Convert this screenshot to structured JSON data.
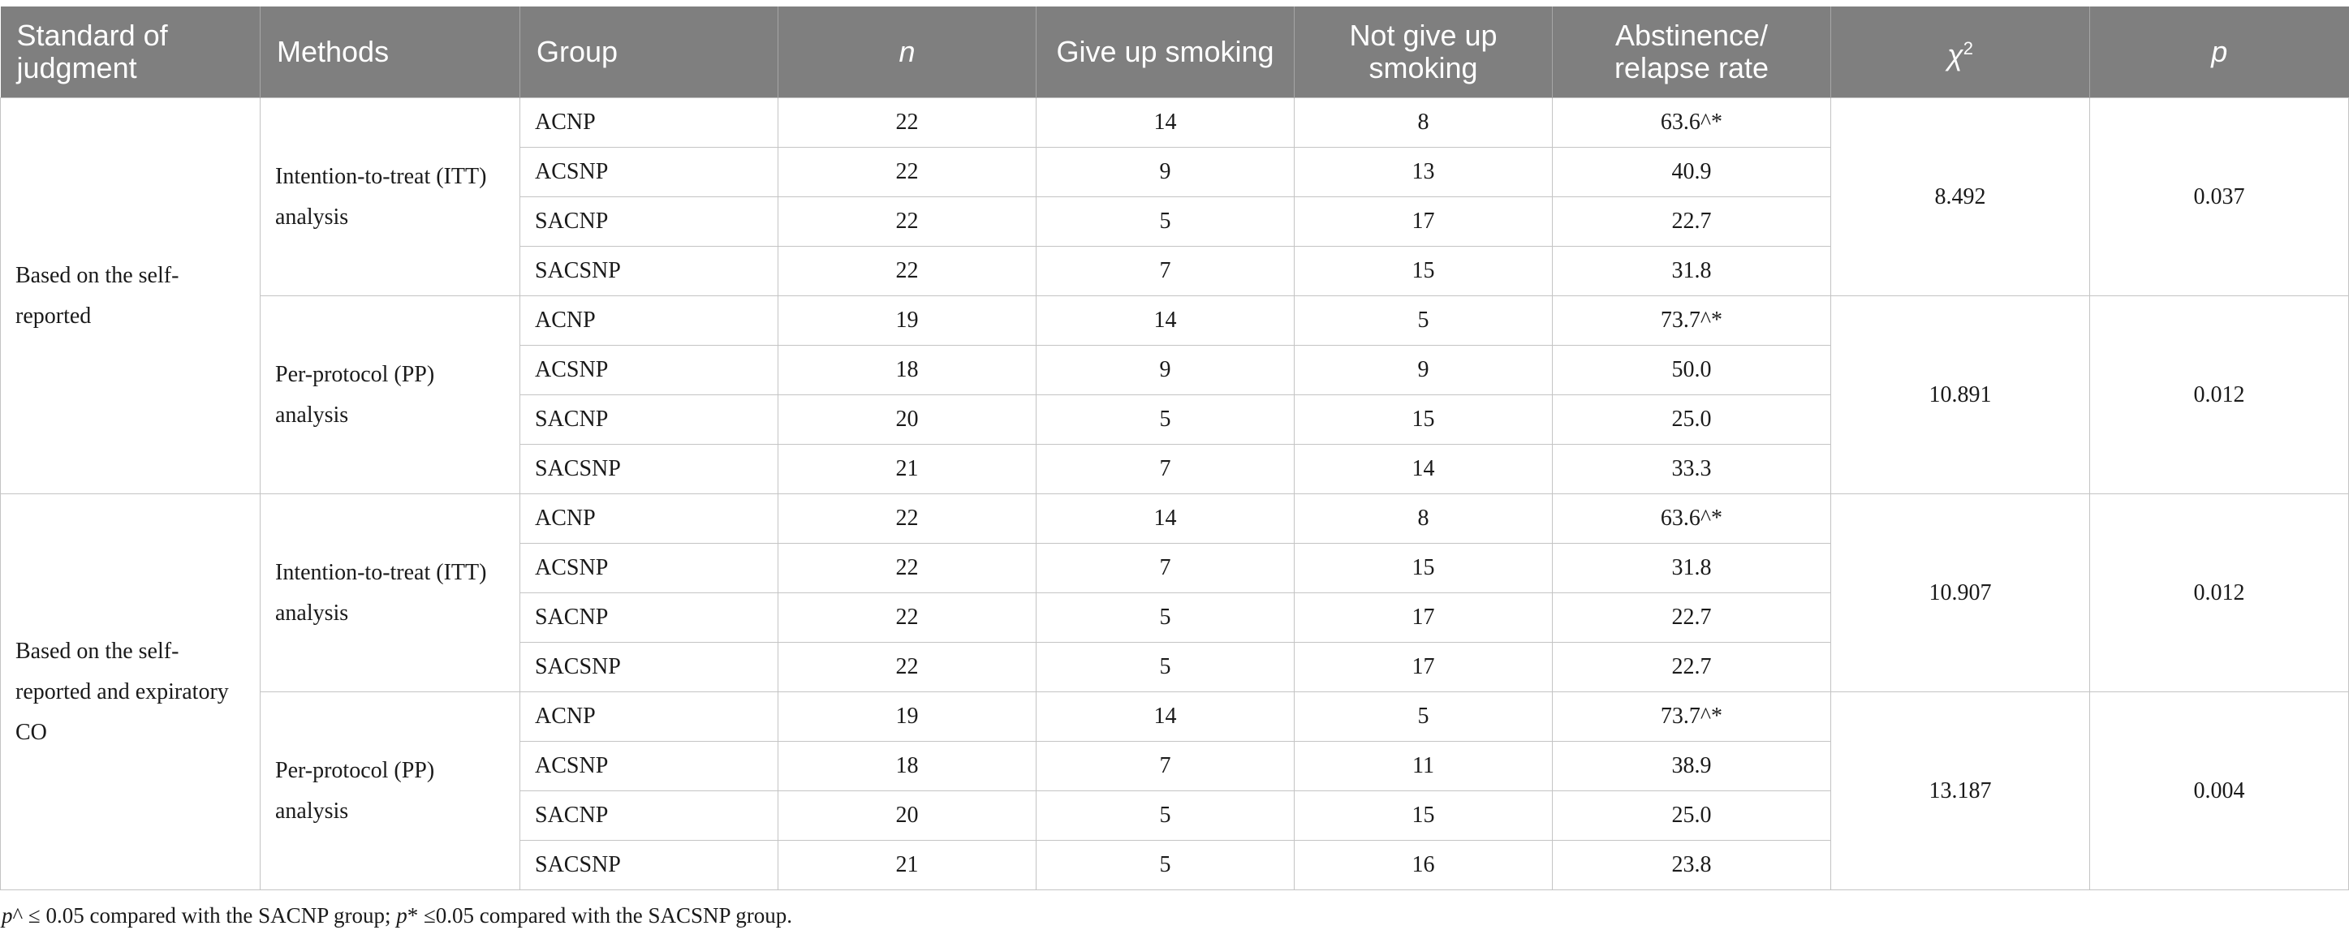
{
  "table": {
    "headers": {
      "standard": "Standard of judgment",
      "methods": "Methods",
      "group": "Group",
      "n": "n",
      "give_up": "Give up smoking",
      "not_give_up": "Not give up smoking",
      "rate": "Abstinence/ relapse rate",
      "chi": "χ",
      "chi_sup": "2",
      "p": "p"
    },
    "sections": [
      {
        "standard": "Based on the self-reported",
        "methods": [
          {
            "name": "Intention-to-treat (ITT) analysis",
            "chi2": "8.492",
            "p": "0.037",
            "rows": [
              {
                "group": "ACNP",
                "n": "22",
                "give_up": "14",
                "not_give_up": "8",
                "rate": "63.6^*"
              },
              {
                "group": "ACSNP",
                "n": "22",
                "give_up": "9",
                "not_give_up": "13",
                "rate": "40.9"
              },
              {
                "group": "SACNP",
                "n": "22",
                "give_up": "5",
                "not_give_up": "17",
                "rate": "22.7"
              },
              {
                "group": "SACSNP",
                "n": "22",
                "give_up": "7",
                "not_give_up": "15",
                "rate": "31.8"
              }
            ]
          },
          {
            "name": "Per-protocol (PP) analysis",
            "chi2": "10.891",
            "p": "0.012",
            "rows": [
              {
                "group": "ACNP",
                "n": "19",
                "give_up": "14",
                "not_give_up": "5",
                "rate": "73.7^*"
              },
              {
                "group": "ACSNP",
                "n": "18",
                "give_up": "9",
                "not_give_up": "9",
                "rate": "50.0"
              },
              {
                "group": "SACNP",
                "n": "20",
                "give_up": "5",
                "not_give_up": "15",
                "rate": "25.0"
              },
              {
                "group": "SACSNP",
                "n": "21",
                "give_up": "7",
                "not_give_up": "14",
                "rate": "33.3"
              }
            ]
          }
        ]
      },
      {
        "standard": "Based on the self-reported and expiratory CO",
        "methods": [
          {
            "name": "Intention-to-treat (ITT) analysis",
            "chi2": "10.907",
            "p": "0.012",
            "rows": [
              {
                "group": "ACNP",
                "n": "22",
                "give_up": "14",
                "not_give_up": "8",
                "rate": "63.6^*"
              },
              {
                "group": "ACSNP",
                "n": "22",
                "give_up": "7",
                "not_give_up": "15",
                "rate": "31.8"
              },
              {
                "group": "SACNP",
                "n": "22",
                "give_up": "5",
                "not_give_up": "17",
                "rate": "22.7"
              },
              {
                "group": "SACSNP",
                "n": "22",
                "give_up": "5",
                "not_give_up": "17",
                "rate": "22.7"
              }
            ]
          },
          {
            "name": "Per-protocol (PP) analysis",
            "chi2": "13.187",
            "p": "0.004",
            "rows": [
              {
                "group": "ACNP",
                "n": "19",
                "give_up": "14",
                "not_give_up": "5",
                "rate": "73.7^*"
              },
              {
                "group": "ACSNP",
                "n": "18",
                "give_up": "7",
                "not_give_up": "11",
                "rate": "38.9"
              },
              {
                "group": "SACNP",
                "n": "20",
                "give_up": "5",
                "not_give_up": "15",
                "rate": "25.0"
              },
              {
                "group": "SACSNP",
                "n": "21",
                "give_up": "5",
                "not_give_up": "16",
                "rate": "23.8"
              }
            ]
          }
        ]
      }
    ]
  },
  "footnote": {
    "p1": "p",
    "t1": "^ ≤ 0.05 compared with the SACNP group; ",
    "p2": "p",
    "t2": "* ≤0.05 compared with the SACSNP group."
  }
}
